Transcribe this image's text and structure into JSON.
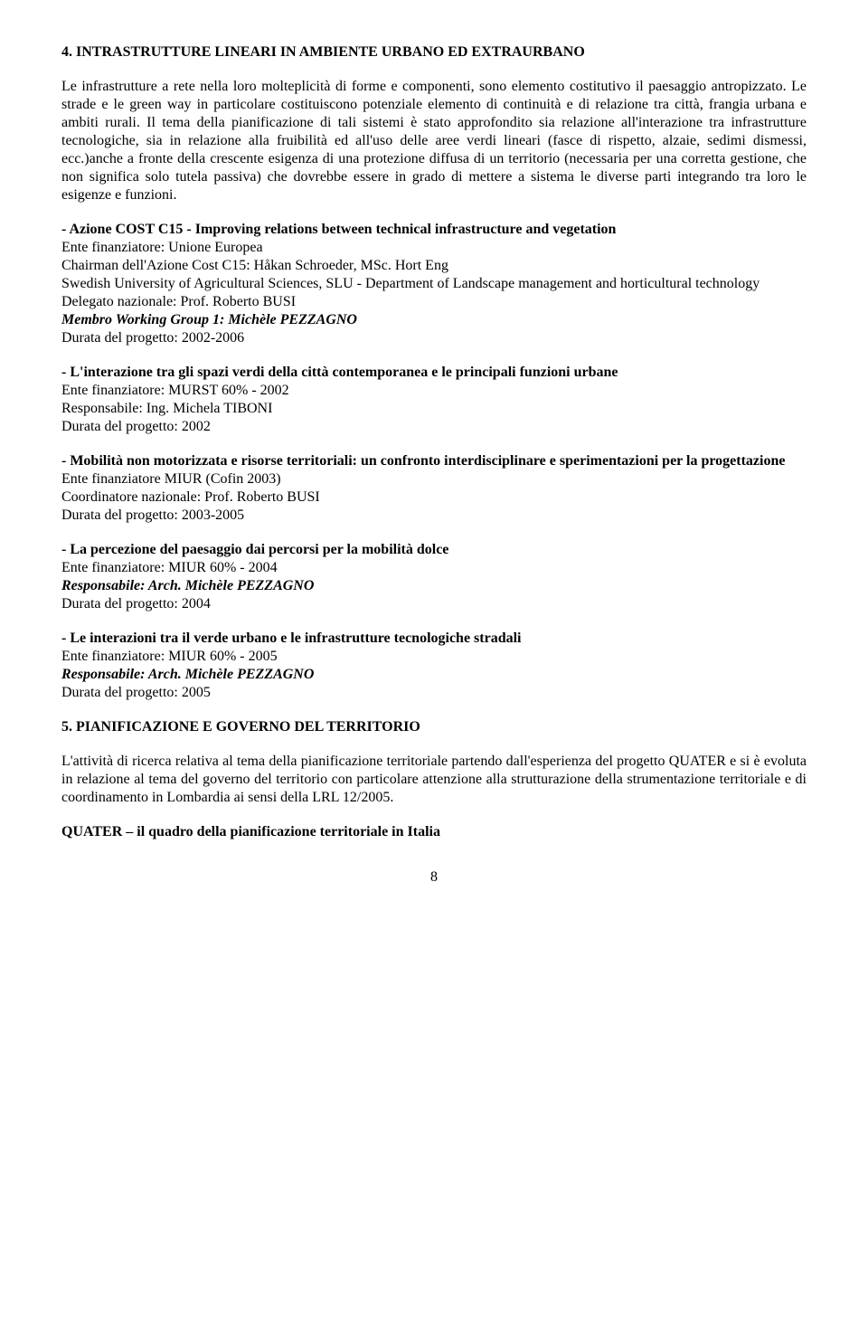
{
  "section4": {
    "title": "4. INTRASTRUTTURE LINEARI IN AMBIENTE URBANO ED EXTRAURBANO",
    "paragraph": "Le infrastrutture a rete nella loro molteplicità di forme e componenti, sono elemento costitutivo il paesaggio antropizzato. Le strade e le green way in particolare costituiscono potenziale elemento di continuità e di relazione tra città, frangia urbana e ambiti rurali. Il tema della pianificazione di tali sistemi è stato approfondito sia relazione all'interazione tra infrastrutture tecnologiche, sia in relazione alla fruibilità ed all'uso delle aree verdi lineari (fasce di rispetto, alzaie, sedimi dismessi, ecc.)anche a fronte della crescente esigenza di una protezione diffusa di un territorio (necessaria per una corretta gestione, che non significa solo tutela passiva) che dovrebbe essere in grado di mettere a sistema le diverse parti integrando tra loro le esigenze e funzioni."
  },
  "items": [
    {
      "title": "- Azione COST C15 - Improving relations between technical infrastructure and vegetation",
      "lines": [
        {
          "text": "Ente finanziatore: Unione Europea",
          "style": "normal"
        },
        {
          "text": "Chairman dell'Azione Cost C15: Håkan Schroeder, MSc. Hort Eng",
          "style": "normal"
        },
        {
          "text": "Swedish University of Agricultural Sciences, SLU - Department of Landscape management and horticultural technology",
          "style": "normal"
        },
        {
          "text": "Delegato nazionale: Prof. Roberto BUSI",
          "style": "normal"
        },
        {
          "text": "Membro Working Group 1: Michèle PEZZAGNO",
          "style": "bolditalic"
        },
        {
          "text": "Durata del progetto: 2002-2006",
          "style": "normal"
        }
      ]
    },
    {
      "title": "- L'interazione tra gli spazi verdi della città contemporanea e le principali funzioni urbane",
      "lines": [
        {
          "text": "Ente finanziatore: MURST 60% - 2002",
          "style": "normal"
        },
        {
          "text": "Responsabile: Ing. Michela TIBONI",
          "style": "normal"
        },
        {
          "text": "Durata del progetto: 2002",
          "style": "normal"
        }
      ]
    },
    {
      "title": "- Mobilità non motorizzata e risorse territoriali: un confronto interdisciplinare e sperimentazioni per la progettazione",
      "title_justify": true,
      "lines": [
        {
          "text": "Ente finanziatore MIUR (Cofin 2003)",
          "style": "normal"
        },
        {
          "text": "Coordinatore nazionale: Prof. Roberto BUSI",
          "style": "normal"
        },
        {
          "text": "Durata del progetto: 2003-2005",
          "style": "normal"
        }
      ]
    },
    {
      "title": "- La percezione del paesaggio dai percorsi per la mobilità dolce",
      "lines": [
        {
          "text": "Ente finanziatore: MIUR 60% - 2004",
          "style": "normal"
        },
        {
          "text": "Responsabile: Arch. Michèle PEZZAGNO",
          "style": "bolditalic"
        },
        {
          "text": "Durata del progetto: 2004",
          "style": "normal"
        }
      ]
    },
    {
      "title": "- Le interazioni tra il verde urbano e le infrastrutture tecnologiche stradali",
      "lines": [
        {
          "text": "Ente finanziatore: MIUR 60% - 2005",
          "style": "normal"
        },
        {
          "text": "Responsabile: Arch. Michèle PEZZAGNO",
          "style": "bolditalic"
        },
        {
          "text": "Durata del progetto: 2005",
          "style": "normal"
        }
      ]
    }
  ],
  "section5": {
    "title": "5. PIANIFICAZIONE E GOVERNO DEL TERRITORIO",
    "paragraph": "L'attività di ricerca relativa al tema della pianificazione territoriale partendo dall'esperienza del progetto QUATER e si è evoluta in relazione al tema del governo del territorio con particolare attenzione alla strutturazione della strumentazione territoriale e di coordinamento in Lombardia ai sensi della LRL 12/2005.",
    "subtitle": "QUATER – il quadro della pianificazione territoriale in Italia"
  },
  "pageNumber": "8"
}
